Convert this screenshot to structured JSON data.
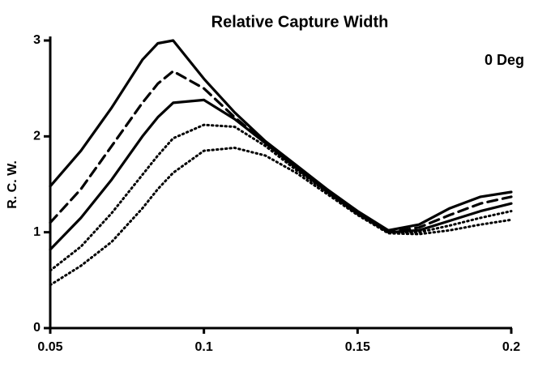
{
  "chart_data": {
    "type": "line",
    "title": "Relative Capture Width",
    "annotation": "0 Deg",
    "y_label": "R. C. W.",
    "x": [
      0.05,
      0.06,
      0.07,
      0.08,
      0.085,
      0.09,
      0.1,
      0.11,
      0.12,
      0.13,
      0.14,
      0.15,
      0.16,
      0.17,
      0.18,
      0.19,
      0.2
    ],
    "series": [
      {
        "color": "#000000",
        "style": "solid",
        "values": [
          1.48,
          1.85,
          2.3,
          2.8,
          2.97,
          3.0,
          2.6,
          2.25,
          1.95,
          1.7,
          1.45,
          1.22,
          1.02,
          1.08,
          1.25,
          1.37,
          1.42
        ]
      },
      {
        "color": "#000000",
        "style": "dashed",
        "values": [
          1.1,
          1.45,
          1.9,
          2.35,
          2.55,
          2.68,
          2.5,
          2.2,
          1.93,
          1.68,
          1.44,
          1.21,
          1.0,
          1.05,
          1.18,
          1.3,
          1.37
        ]
      },
      {
        "color": "#000000",
        "style": "solid",
        "values": [
          0.82,
          1.15,
          1.55,
          2.0,
          2.2,
          2.35,
          2.38,
          2.18,
          1.93,
          1.67,
          1.43,
          1.2,
          1.0,
          1.02,
          1.12,
          1.22,
          1.3
        ]
      },
      {
        "color": "#000000",
        "style": "dotted",
        "values": [
          0.6,
          0.85,
          1.2,
          1.6,
          1.8,
          1.98,
          2.12,
          2.1,
          1.9,
          1.65,
          1.42,
          1.19,
          1.0,
          1.0,
          1.07,
          1.15,
          1.22
        ]
      },
      {
        "color": "#000000",
        "style": "dotted",
        "values": [
          0.45,
          0.65,
          0.9,
          1.25,
          1.45,
          1.62,
          1.85,
          1.88,
          1.8,
          1.62,
          1.4,
          1.18,
          0.99,
          0.98,
          1.02,
          1.08,
          1.13
        ]
      }
    ],
    "xlim": [
      0.05,
      0.2
    ],
    "xticks": [
      0.05,
      0.1,
      0.15,
      0.2
    ],
    "ylim": [
      0,
      3
    ],
    "yticks": [
      0,
      1,
      2,
      3
    ]
  }
}
